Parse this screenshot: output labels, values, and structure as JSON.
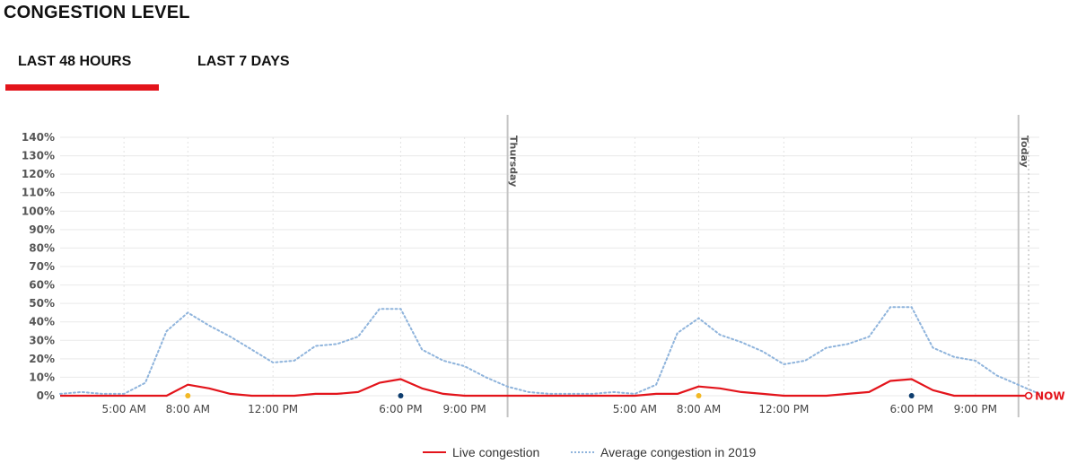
{
  "header": {
    "title": "CONGESTION LEVEL"
  },
  "tabs": [
    {
      "label": "LAST 48 HOURS",
      "active": true
    },
    {
      "label": "LAST 7 DAYS",
      "active": false
    }
  ],
  "colors": {
    "accent": "#e3141b",
    "live": "#e3141b",
    "average": "#8fb4dc",
    "morning_marker": "#f2b824",
    "evening_marker": "#0d3d6e"
  },
  "chart_data": {
    "type": "line",
    "y_ticks": [
      "0%",
      "10%",
      "20%",
      "30%",
      "40%",
      "50%",
      "60%",
      "70%",
      "80%",
      "90%",
      "100%",
      "110%",
      "120%",
      "130%",
      "140%"
    ],
    "ylim": [
      0,
      140
    ],
    "x_hours_range": [
      2,
      48
    ],
    "x_ticks": [
      {
        "hour": 5,
        "label": "5:00 AM"
      },
      {
        "hour": 8,
        "label": "8:00 AM"
      },
      {
        "hour": 12,
        "label": "12:00 PM"
      },
      {
        "hour": 18,
        "label": "6:00 PM"
      },
      {
        "hour": 21,
        "label": "9:00 PM"
      },
      {
        "hour": 29,
        "label": "5:00 AM"
      },
      {
        "hour": 32,
        "label": "8:00 AM"
      },
      {
        "hour": 36,
        "label": "12:00 PM"
      },
      {
        "hour": 42,
        "label": "6:00 PM"
      },
      {
        "hour": 45,
        "label": "9:00 PM"
      }
    ],
    "day_markers": [
      {
        "hour": 23,
        "label": "Thursday"
      },
      {
        "hour": 47,
        "label": "Today"
      }
    ],
    "now_label": "NOW",
    "now_hour": 47.5,
    "peak_markers": [
      {
        "hour": 8,
        "kind": "morning"
      },
      {
        "hour": 18,
        "kind": "evening"
      },
      {
        "hour": 32,
        "kind": "morning"
      },
      {
        "hour": 42,
        "kind": "evening"
      }
    ],
    "series": [
      {
        "name": "Live congestion",
        "style": "solid",
        "points": [
          [
            2,
            0
          ],
          [
            3,
            0
          ],
          [
            4,
            0
          ],
          [
            5,
            0
          ],
          [
            6,
            0
          ],
          [
            7,
            0
          ],
          [
            8,
            6
          ],
          [
            9,
            4
          ],
          [
            10,
            1
          ],
          [
            11,
            0
          ],
          [
            12,
            0
          ],
          [
            13,
            0
          ],
          [
            14,
            1
          ],
          [
            15,
            1
          ],
          [
            16,
            2
          ],
          [
            17,
            7
          ],
          [
            18,
            9
          ],
          [
            19,
            4
          ],
          [
            20,
            1
          ],
          [
            21,
            0
          ],
          [
            22,
            0
          ],
          [
            23,
            0
          ],
          [
            24,
            0
          ],
          [
            25,
            0
          ],
          [
            26,
            0
          ],
          [
            27,
            0
          ],
          [
            28,
            0
          ],
          [
            29,
            0
          ],
          [
            30,
            1
          ],
          [
            31,
            1
          ],
          [
            32,
            5
          ],
          [
            33,
            4
          ],
          [
            34,
            2
          ],
          [
            35,
            1
          ],
          [
            36,
            0
          ],
          [
            37,
            0
          ],
          [
            38,
            0
          ],
          [
            39,
            1
          ],
          [
            40,
            2
          ],
          [
            41,
            8
          ],
          [
            42,
            9
          ],
          [
            43,
            3
          ],
          [
            44,
            0
          ],
          [
            45,
            0
          ],
          [
            46,
            0
          ],
          [
            47,
            0
          ],
          [
            47.5,
            0
          ]
        ]
      },
      {
        "name": "Average congestion in 2019",
        "style": "dotted",
        "points": [
          [
            2,
            1
          ],
          [
            3,
            2
          ],
          [
            4,
            1
          ],
          [
            5,
            1
          ],
          [
            6,
            7
          ],
          [
            7,
            35
          ],
          [
            8,
            45
          ],
          [
            9,
            38
          ],
          [
            10,
            32
          ],
          [
            11,
            25
          ],
          [
            12,
            18
          ],
          [
            13,
            19
          ],
          [
            14,
            27
          ],
          [
            15,
            28
          ],
          [
            16,
            32
          ],
          [
            17,
            47
          ],
          [
            18,
            47
          ],
          [
            19,
            25
          ],
          [
            20,
            19
          ],
          [
            21,
            16
          ],
          [
            22,
            10
          ],
          [
            23,
            5
          ],
          [
            24,
            2
          ],
          [
            25,
            1
          ],
          [
            26,
            1
          ],
          [
            27,
            1
          ],
          [
            28,
            2
          ],
          [
            29,
            1
          ],
          [
            30,
            6
          ],
          [
            31,
            34
          ],
          [
            32,
            42
          ],
          [
            33,
            33
          ],
          [
            34,
            29
          ],
          [
            35,
            24
          ],
          [
            36,
            17
          ],
          [
            37,
            19
          ],
          [
            38,
            26
          ],
          [
            39,
            28
          ],
          [
            40,
            32
          ],
          [
            41,
            48
          ],
          [
            42,
            48
          ],
          [
            43,
            26
          ],
          [
            44,
            21
          ],
          [
            45,
            19
          ],
          [
            46,
            11
          ],
          [
            47,
            6
          ],
          [
            48,
            1
          ]
        ]
      }
    ]
  }
}
